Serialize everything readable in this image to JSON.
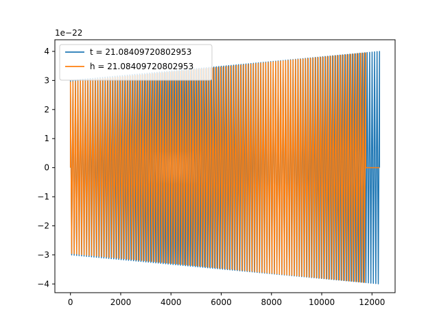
{
  "chart_data": {
    "type": "line",
    "title": "",
    "xlabel": "",
    "ylabel": "",
    "offset_text": "1e−22",
    "xlim": [
      -620,
      12920
    ],
    "ylim": [
      -4.3,
      4.4
    ],
    "x_ticks": [
      0,
      2000,
      4000,
      6000,
      8000,
      10000,
      12000
    ],
    "x_tick_labels": [
      "0",
      "2000",
      "4000",
      "6000",
      "8000",
      "10000",
      "12000"
    ],
    "y_ticks": [
      -4,
      -3,
      -2,
      -1,
      0,
      1,
      2,
      3,
      4
    ],
    "y_tick_labels": [
      "−4",
      "−3",
      "−2",
      "−1",
      "0",
      "1",
      "2",
      "3",
      "4"
    ],
    "grid": false,
    "legend_placement": "upper-left",
    "series": [
      {
        "name": "t = 21.08409720802953",
        "color": "#1f77b4",
        "x_start": 0,
        "x_end": 12300,
        "amp_start": 3.0,
        "amp_end": 4.0,
        "cycles": 125
      },
      {
        "name": "h = 21.08409720802953",
        "color": "#ff7f0e",
        "x_start": 0,
        "x_end": 11750,
        "flat_end": 12300,
        "amp_start": 2.95,
        "amp_end": 3.95,
        "cycles": 118
      }
    ]
  }
}
